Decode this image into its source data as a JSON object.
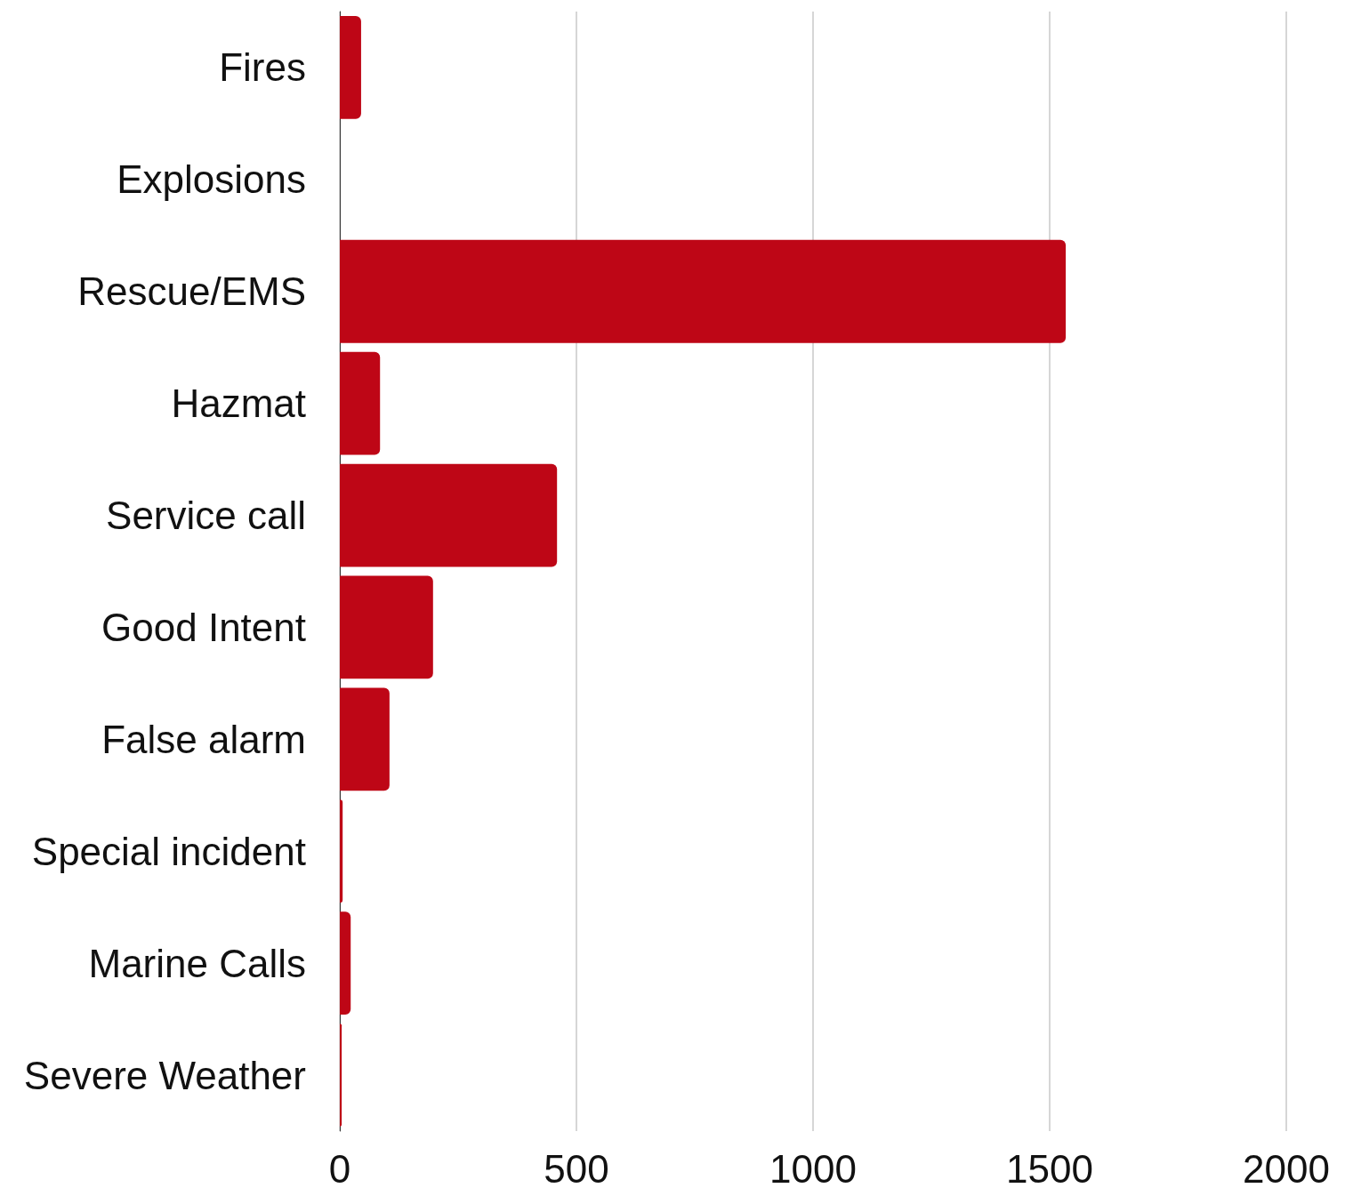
{
  "chart_data": {
    "type": "bar",
    "orientation": "horizontal",
    "categories": [
      "Fires",
      "Explosions",
      "Rescue/EMS",
      "Hazmat",
      "Service call",
      "Good Intent",
      "False alarm",
      "Special incident",
      "Marine Calls",
      "Severe Weather"
    ],
    "values": [
      45,
      0,
      1534,
      85,
      459,
      197,
      105,
      6,
      23,
      4
    ],
    "color": "#be0616",
    "xlim": [
      0,
      2000
    ],
    "xticks": [
      0,
      500,
      1000,
      1500,
      2000
    ],
    "grid": "x"
  }
}
